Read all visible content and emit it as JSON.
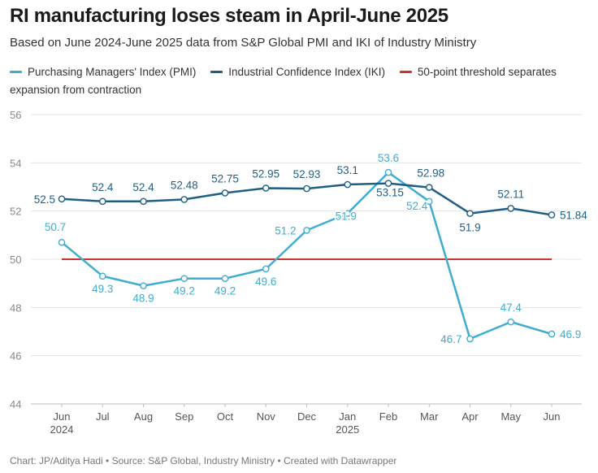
{
  "header": {
    "title": "RI manufacturing loses steam in April-June 2025",
    "subtitle": "Based on June 2024-June 2025 data from S&P Global PMI and IKI of Industry Ministry"
  },
  "legend": [
    {
      "label": "Purchasing Managers' Index (PMI)",
      "color": "#3eadd2"
    },
    {
      "label": "Industrial Confidence Index (IKI)",
      "color": "#1f5f84"
    },
    {
      "label": "50-point threshold separates expansion from contraction",
      "color": "#cc3333"
    }
  ],
  "footer": "Chart: JP/Aditya Hadi • Source: S&P Global, Industry Ministry • Created with Datawrapper",
  "chart_data": {
    "type": "line",
    "categories": [
      "Jun",
      "Jul",
      "Aug",
      "Sep",
      "Oct",
      "Nov",
      "Dec",
      "Jan",
      "Feb",
      "Mar",
      "Apr",
      "May",
      "Jun"
    ],
    "category_sublabels": [
      "2024",
      "",
      "",
      "",
      "",
      "",
      "",
      "2025",
      "",
      "",
      "",
      "",
      ""
    ],
    "ylim": [
      44,
      56
    ],
    "yticks": [
      44,
      46,
      48,
      50,
      52,
      54,
      56
    ],
    "grid": true,
    "legend_position": "top",
    "threshold": {
      "value": 50,
      "color": "#cc3333"
    },
    "series": [
      {
        "name": "Purchasing Managers' Index (PMI)",
        "color": "#3eadd2",
        "values": [
          50.7,
          49.3,
          48.9,
          49.2,
          49.2,
          49.6,
          51.2,
          51.9,
          53.6,
          52.4,
          46.7,
          47.4,
          46.9
        ],
        "labels": [
          "50.7",
          "49.3",
          "48.9",
          "49.2",
          "49.2",
          "49.6",
          "51.2",
          "51.9",
          "53.6",
          "52.4",
          "46.7",
          "47.4",
          "46.9"
        ]
      },
      {
        "name": "Industrial Confidence Index (IKI)",
        "color": "#1f5f84",
        "values": [
          52.5,
          52.4,
          52.4,
          52.48,
          52.75,
          52.95,
          52.93,
          53.1,
          53.15,
          52.98,
          51.9,
          52.11,
          51.84
        ],
        "labels": [
          "52.5",
          "52.4",
          "52.4",
          "52.48",
          "52.75",
          "52.95",
          "52.93",
          "53.1",
          "53.15",
          "52.98",
          "51.9",
          "52.11",
          "51.84"
        ]
      }
    ]
  }
}
